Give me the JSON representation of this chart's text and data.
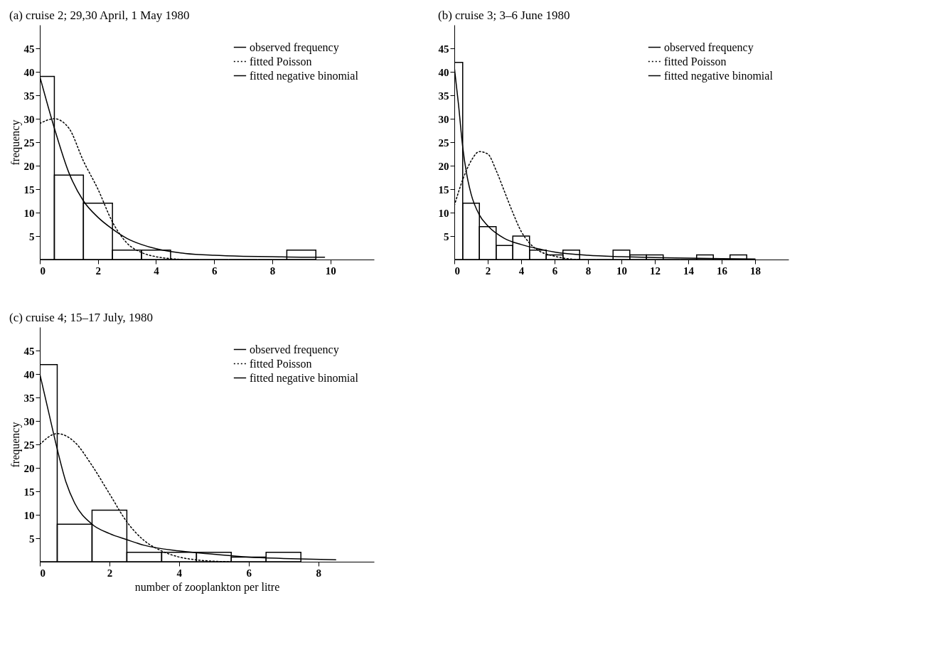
{
  "chart_data": [
    {
      "type": "histogram",
      "title": "(a) cruise 2; 29,30 April, 1 May 1980",
      "ylabel": "frequency",
      "xlim": [
        0,
        11.5
      ],
      "xticks": [
        0,
        2,
        4,
        6,
        8,
        10
      ],
      "ylim": [
        0,
        50
      ],
      "yticks": [
        5,
        10,
        15,
        20,
        25,
        30,
        35,
        40,
        45
      ],
      "grid": false,
      "legend": "top right",
      "marker": "none",
      "series": [
        {
          "name": "observed frequency",
          "type": "histogram",
          "color": "#000000",
          "bins": [
            0,
            0.5,
            1.5,
            2.5,
            3.5,
            4.5,
            5.5,
            6.5,
            7.5,
            8.5,
            9.5
          ],
          "values": [
            39,
            18,
            12,
            2,
            2,
            0,
            0,
            0,
            0,
            2
          ]
        },
        {
          "name": "fitted Poisson",
          "type": "line",
          "color": "#000000",
          "line_style": "dotted",
          "x": [
            0,
            0.5,
            1,
            1.5,
            2,
            2.5,
            3,
            3.5,
            4,
            4.5,
            4.9
          ],
          "values": [
            29,
            30,
            28,
            21,
            15,
            8,
            3.5,
            1.5,
            0.6,
            0.2,
            0
          ]
        },
        {
          "name": "fitted negative binomial",
          "type": "line",
          "color": "#000000",
          "line_style": "solid",
          "x": [
            0,
            0.5,
            1,
            1.5,
            2,
            2.5,
            3,
            3.5,
            4,
            4.5,
            5,
            6,
            7,
            8,
            9,
            9.8
          ],
          "values": [
            39,
            28,
            18.5,
            12.5,
            9,
            6.5,
            4.5,
            3.2,
            2.3,
            1.7,
            1.3,
            0.9,
            0.7,
            0.6,
            0.5,
            0.5
          ]
        }
      ]
    },
    {
      "type": "histogram",
      "title": "(b) cruise 3; 3–6 June 1980",
      "xlim": [
        0,
        20
      ],
      "xticks": [
        0,
        2,
        4,
        6,
        8,
        10,
        12,
        14,
        16,
        18
      ],
      "ylim": [
        0,
        50
      ],
      "yticks": [
        5,
        10,
        15,
        20,
        25,
        30,
        35,
        40,
        45
      ],
      "grid": false,
      "legend": "top right",
      "marker": "none",
      "series": [
        {
          "name": "observed frequency",
          "type": "histogram",
          "color": "#000000",
          "bins": [
            0,
            0.5,
            1.5,
            2.5,
            3.5,
            4.5,
            5.5,
            6.5,
            7.5,
            8.5,
            9.5,
            10.5,
            11.5,
            12.5,
            13.5,
            14.5,
            15.5,
            16.5,
            17.5
          ],
          "values": [
            42,
            12,
            7,
            3,
            5,
            2,
            1,
            2,
            0,
            0,
            2,
            1,
            1,
            0,
            0,
            1,
            0,
            1
          ]
        },
        {
          "name": "fitted Poisson",
          "type": "line",
          "color": "#000000",
          "line_style": "dotted",
          "x": [
            0,
            0.5,
            1,
            1.5,
            2,
            2.5,
            3,
            3.5,
            4,
            4.5,
            5,
            6,
            7,
            7.5
          ],
          "values": [
            11.5,
            17,
            21,
            23,
            22.5,
            19,
            14.5,
            10,
            6,
            3.5,
            2,
            0.7,
            0.1,
            0
          ]
        },
        {
          "name": "fitted negative binomial",
          "type": "line",
          "color": "#000000",
          "line_style": "solid",
          "x": [
            0,
            0.25,
            0.5,
            0.75,
            1,
            1.5,
            2,
            3,
            4,
            5,
            6,
            8,
            10,
            12,
            14,
            18
          ],
          "values": [
            41,
            33,
            24,
            18,
            14,
            9.5,
            7.2,
            4.5,
            3.2,
            2.3,
            1.6,
            0.9,
            0.6,
            0.4,
            0.3,
            0.1
          ]
        }
      ]
    },
    {
      "type": "histogram",
      "title": "(c) cruise 4; 15–17 July, 1980",
      "xlabel": "number of zooplankton per litre",
      "ylabel": "frequency",
      "xlim": [
        0,
        9.6
      ],
      "xticks": [
        0,
        2,
        4,
        6,
        8
      ],
      "ylim": [
        0,
        50
      ],
      "yticks": [
        5,
        10,
        15,
        20,
        25,
        30,
        35,
        40,
        45
      ],
      "grid": false,
      "legend": "top right",
      "marker": "none",
      "series": [
        {
          "name": "observed frequency",
          "type": "histogram",
          "color": "#000000",
          "bins": [
            0,
            0.5,
            1.5,
            2.5,
            3.5,
            4.5,
            5.5,
            6.5,
            7.5
          ],
          "values": [
            42,
            8,
            11,
            2,
            2,
            2,
            1,
            2
          ]
        },
        {
          "name": "fitted Poisson",
          "type": "line",
          "color": "#000000",
          "line_style": "dotted",
          "x": [
            0,
            0.5,
            1,
            1.5,
            2,
            2.5,
            3,
            3.5,
            4,
            4.5,
            5,
            5.5
          ],
          "values": [
            25,
            27.3,
            25.5,
            20.5,
            14.5,
            8.5,
            4.5,
            2.3,
            1,
            0.4,
            0.1,
            0
          ]
        },
        {
          "name": "fitted negative binomial",
          "type": "line",
          "color": "#000000",
          "line_style": "solid",
          "x": [
            0,
            0.25,
            0.5,
            0.75,
            1,
            1.5,
            2,
            2.5,
            3,
            4,
            5,
            6,
            7,
            8.5
          ],
          "values": [
            40,
            32,
            24,
            17,
            12.5,
            8,
            6,
            4.7,
            3.5,
            2.3,
            1.6,
            1,
            0.7,
            0.4
          ]
        }
      ]
    }
  ]
}
